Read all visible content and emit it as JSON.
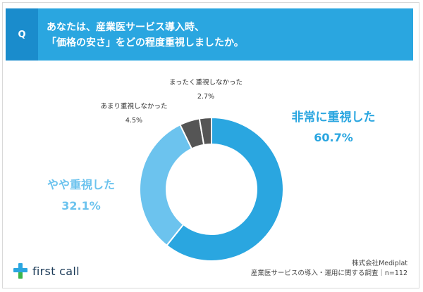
{
  "question": {
    "badge": "Q",
    "line1": "あなたは、産業医サービス導入時、",
    "line2": "「価格の安さ」をどの程度重視しましたか。"
  },
  "chart_data": {
    "type": "pie",
    "donut": true,
    "categories": [
      "非常に重視した",
      "やや重視した",
      "あまり重視しなかった",
      "まったく重視しなかった"
    ],
    "values": [
      60.7,
      32.1,
      4.5,
      2.7
    ],
    "value_labels": [
      "60.7%",
      "32.1%",
      "4.5%",
      "2.7%"
    ],
    "colors": [
      "#2aa6e0",
      "#6cc3ee",
      "#555555",
      "#555555"
    ],
    "label_colors": [
      "#2aa6e0",
      "#6cc3ee",
      "#333333",
      "#333333"
    ]
  },
  "brand": {
    "name": "first call",
    "icon": "plus-pin-icon",
    "colors": [
      "#2aa6e0",
      "#3bb54a"
    ]
  },
  "source": {
    "line1": "株式会社Mediplat",
    "line2": "産業医サービスの導入・運用に関する調査｜n=112"
  }
}
